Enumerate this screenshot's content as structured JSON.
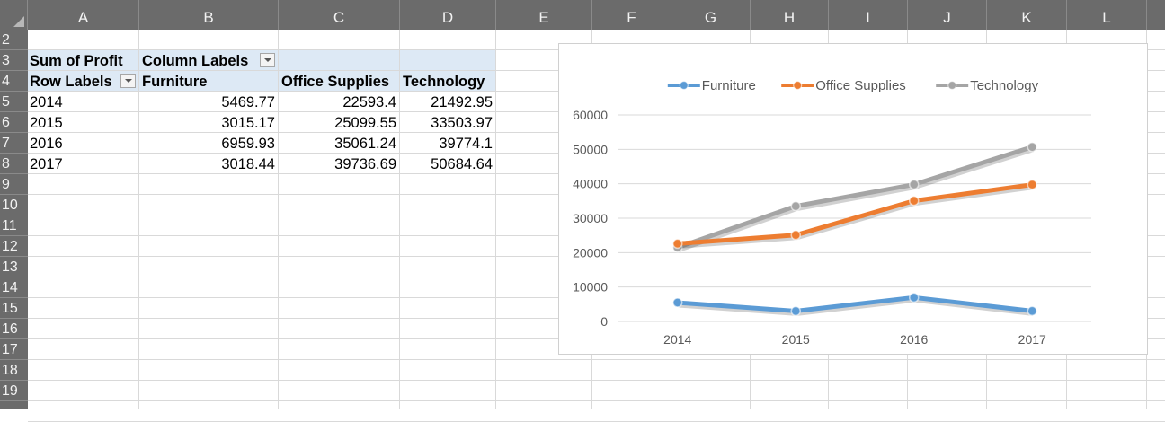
{
  "sheet": {
    "columns": [
      "A",
      "B",
      "C",
      "D",
      "E",
      "F",
      "G",
      "H",
      "I",
      "J",
      "K",
      "L"
    ],
    "rows": [
      "2",
      "3",
      "4",
      "5",
      "6",
      "7",
      "8",
      "9",
      "10",
      "11",
      "12",
      "13",
      "14",
      "15",
      "16",
      "17",
      "18",
      "19"
    ]
  },
  "pivot": {
    "value_label": "Sum of Profit",
    "column_labels": "Column Labels",
    "row_labels": "Row Labels",
    "col_headers": [
      "Furniture",
      "Office Supplies",
      "Technology"
    ],
    "rows": [
      {
        "label": "2014",
        "values": [
          "5469.77",
          "22593.4",
          "21492.95"
        ]
      },
      {
        "label": "2015",
        "values": [
          "3015.17",
          "25099.55",
          "33503.97"
        ]
      },
      {
        "label": "2016",
        "values": [
          "6959.93",
          "35061.24",
          "39774.1"
        ]
      },
      {
        "label": "2017",
        "values": [
          "3018.44",
          "39736.69",
          "50684.64"
        ]
      }
    ]
  },
  "chart_data": {
    "type": "line",
    "title": "",
    "xlabel": "",
    "ylabel": "",
    "categories": [
      "2014",
      "2015",
      "2016",
      "2017"
    ],
    "series": [
      {
        "name": "Furniture",
        "color": "#5b9bd5",
        "values": [
          5469.77,
          3015.17,
          6959.93,
          3018.44
        ]
      },
      {
        "name": "Office Supplies",
        "color": "#ed7d31",
        "values": [
          22593.4,
          25099.55,
          35061.24,
          39736.69
        ]
      },
      {
        "name": "Technology",
        "color": "#a5a5a5",
        "values": [
          21492.95,
          33503.97,
          39774.1,
          50684.64
        ]
      }
    ],
    "ylim": [
      0,
      60000
    ],
    "yticks": [
      "0",
      "10000",
      "20000",
      "30000",
      "40000",
      "50000",
      "60000"
    ],
    "grid": true,
    "legend": "top"
  }
}
